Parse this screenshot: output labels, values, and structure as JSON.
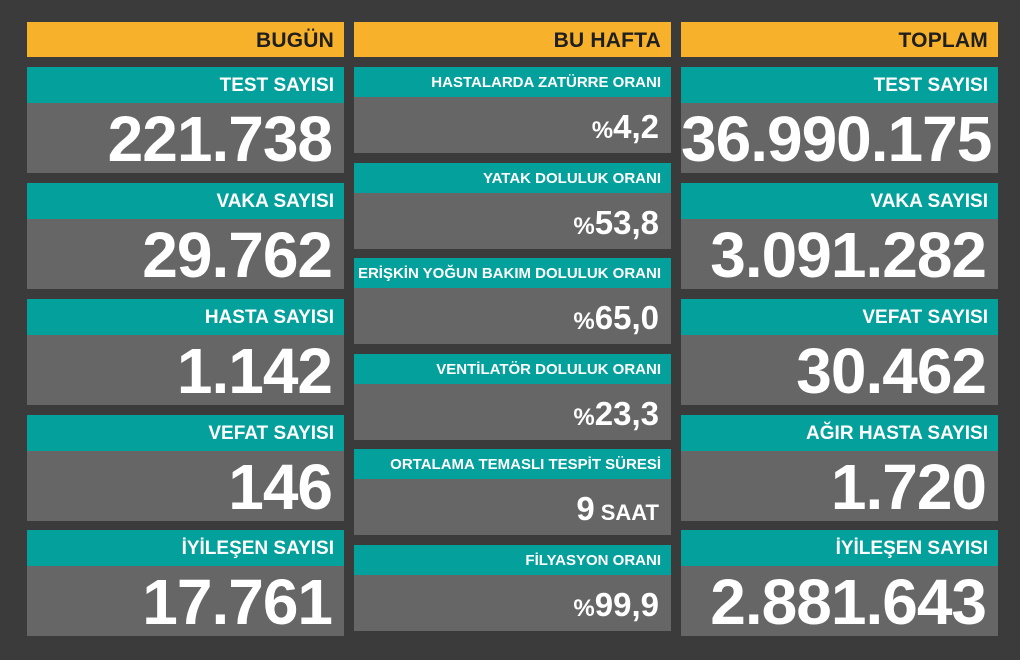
{
  "today": {
    "header": "BUGÜN",
    "items": [
      {
        "label": "TEST SAYISI",
        "value": "221.738"
      },
      {
        "label": "VAKA SAYISI",
        "value": "29.762"
      },
      {
        "label": "HASTA SAYISI",
        "value": "1.142"
      },
      {
        "label": "VEFAT SAYISI",
        "value": "146"
      },
      {
        "label": "İYİLEŞEN SAYISI",
        "value": "17.761"
      }
    ]
  },
  "week": {
    "header": "BU HAFTA",
    "items": [
      {
        "label": "HASTALARDA ZATÜRRE ORANI",
        "prefix": "%",
        "value": "4,2",
        "suffix": ""
      },
      {
        "label": "YATAK DOLULUK ORANI",
        "prefix": "%",
        "value": "53,8",
        "suffix": ""
      },
      {
        "label": "ERİŞKİN YOĞUN BAKIM DOLULUK ORANI",
        "prefix": "%",
        "value": "65,0",
        "suffix": ""
      },
      {
        "label": "VENTİLATÖR DOLULUK ORANI",
        "prefix": "%",
        "value": "23,3",
        "suffix": ""
      },
      {
        "label": "ORTALAMA TEMASLI TESPİT SÜRESİ",
        "prefix": "",
        "value": "9",
        "suffix": "SAAT"
      },
      {
        "label": "FİLYASYON ORANI",
        "prefix": "%",
        "value": "99,9",
        "suffix": ""
      }
    ]
  },
  "total": {
    "header": "TOPLAM",
    "items": [
      {
        "label": "TEST SAYISI",
        "value": "36.990.175"
      },
      {
        "label": "VAKA SAYISI",
        "value": "3.091.282"
      },
      {
        "label": "VEFAT SAYISI",
        "value": "30.462"
      },
      {
        "label": "AĞIR HASTA SAYISI",
        "value": "1.720"
      },
      {
        "label": "İYİLEŞEN SAYISI",
        "value": "2.881.643"
      }
    ]
  },
  "colors": {
    "background": "#3b3b3b",
    "header": "#f7b12a",
    "label": "#04a09c",
    "value": "#666666"
  }
}
